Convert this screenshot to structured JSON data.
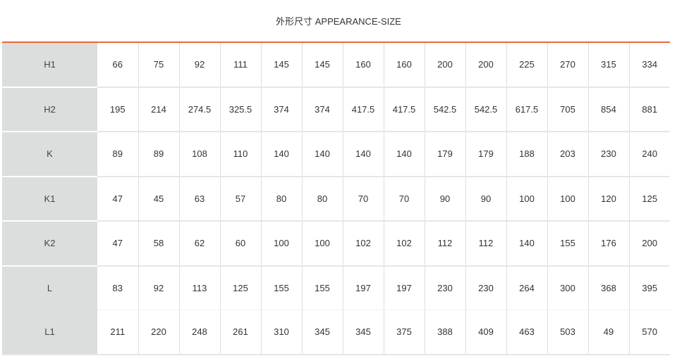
{
  "title": "外形尺寸 APPEARANCE-SIZE",
  "colors": {
    "accent_rule": "#e8683e",
    "label_column_bg": "#dcdddd"
  },
  "rows": [
    {
      "label": "H1",
      "values": [
        "66",
        "75",
        "92",
        "111",
        "145",
        "145",
        "160",
        "160",
        "200",
        "200",
        "225",
        "270",
        "315",
        "334"
      ]
    },
    {
      "label": "H2",
      "values": [
        "195",
        "214",
        "274.5",
        "325.5",
        "374",
        "374",
        "417.5",
        "417.5",
        "542.5",
        "542.5",
        "617.5",
        "705",
        "854",
        "881"
      ]
    },
    {
      "label": "K",
      "values": [
        "89",
        "89",
        "108",
        "110",
        "140",
        "140",
        "140",
        "140",
        "179",
        "179",
        "188",
        "203",
        "230",
        "240"
      ]
    },
    {
      "label": "K1",
      "values": [
        "47",
        "45",
        "63",
        "57",
        "80",
        "80",
        "70",
        "70",
        "90",
        "90",
        "100",
        "100",
        "120",
        "125"
      ]
    },
    {
      "label": "K2",
      "values": [
        "47",
        "58",
        "62",
        "60",
        "100",
        "100",
        "102",
        "102",
        "112",
        "112",
        "140",
        "155",
        "176",
        "200"
      ]
    },
    {
      "label": "L",
      "values": [
        "83",
        "92",
        "113",
        "125",
        "155",
        "155",
        "197",
        "197",
        "230",
        "230",
        "264",
        "300",
        "368",
        "395"
      ]
    },
    {
      "label": "L1",
      "values": [
        "211",
        "220",
        "248",
        "261",
        "310",
        "345",
        "345",
        "375",
        "388",
        "409",
        "463",
        "503",
        "49",
        "570"
      ]
    }
  ]
}
